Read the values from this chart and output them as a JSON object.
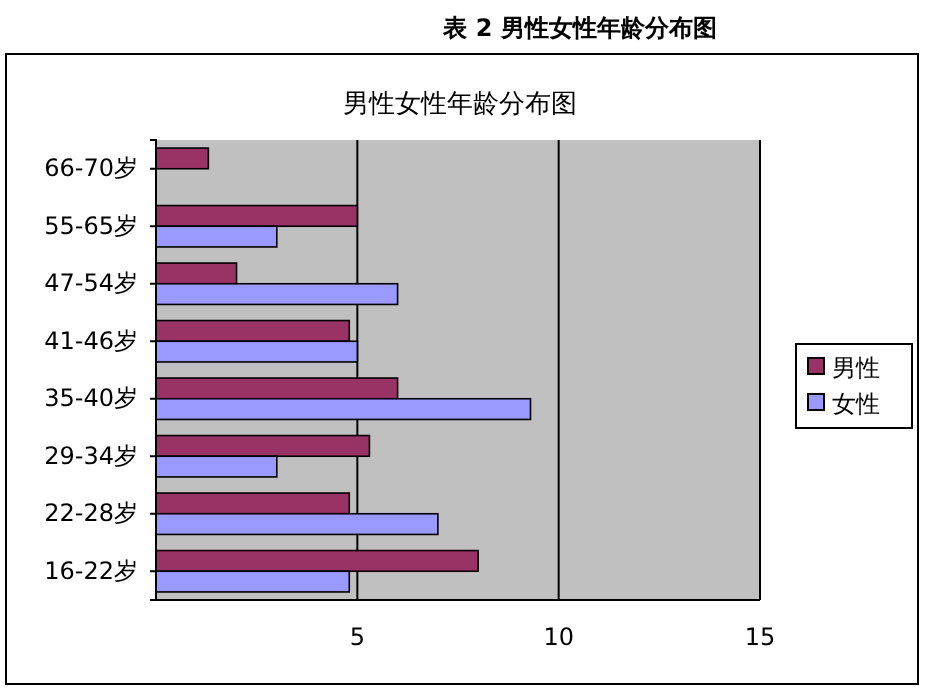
{
  "chart_data": {
    "type": "bar",
    "orientation": "horizontal",
    "title": "表 2  男性女性年龄分布图",
    "subtitle": "男性女性年龄分布图",
    "categories": [
      "66-70岁",
      "55-65岁",
      "47-54岁",
      "41-46岁",
      "35-40岁",
      "29-34岁",
      "22-28岁",
      "16-22岁"
    ],
    "series": [
      {
        "name": "男性",
        "color": "#993366",
        "values": [
          1.3,
          5,
          2,
          4.8,
          6,
          5.3,
          4.8,
          8
        ]
      },
      {
        "name": "女性",
        "color": "#9999ff",
        "values": [
          null,
          3,
          6,
          5,
          9.3,
          3,
          7,
          4.8
        ]
      }
    ],
    "xlim": [
      0,
      15
    ],
    "xticks": [
      5,
      10,
      15
    ],
    "grid": "x",
    "legend": "right"
  }
}
